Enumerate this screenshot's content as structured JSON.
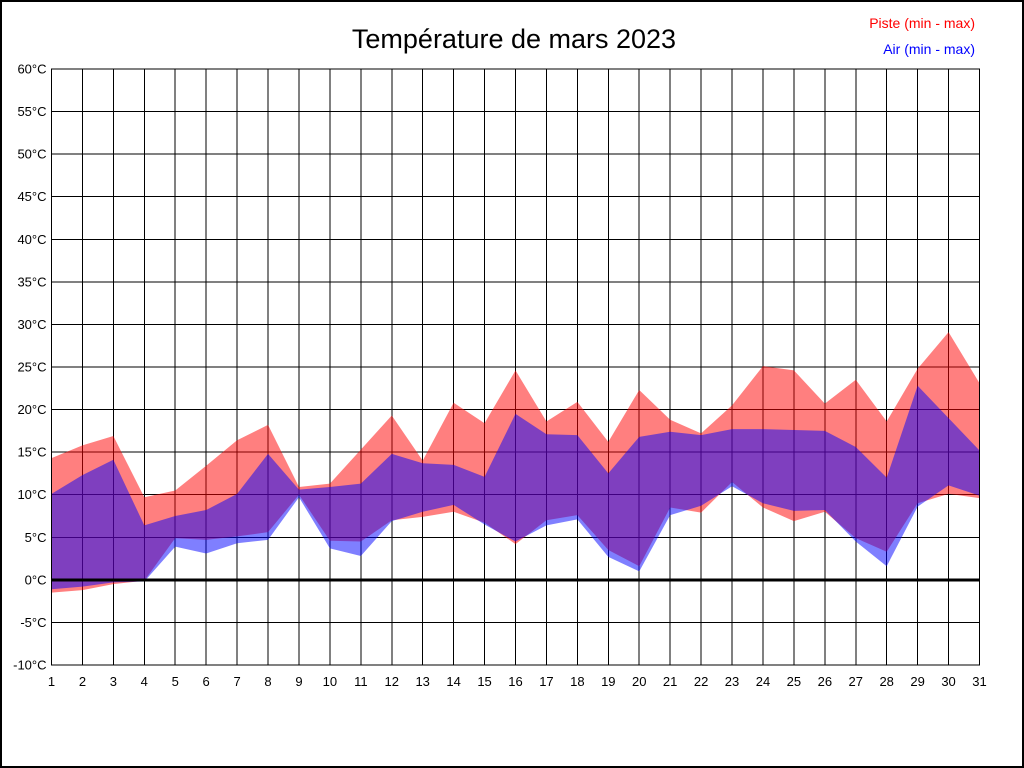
{
  "chart_data": {
    "type": "area",
    "title": "Température de mars 2023",
    "legend": {
      "piste_label": "Piste (min - max)",
      "air_label": "Air (min - max)",
      "position": "top-right"
    },
    "x": [
      1,
      2,
      3,
      4,
      5,
      6,
      7,
      8,
      9,
      10,
      11,
      12,
      13,
      14,
      15,
      16,
      17,
      18,
      19,
      20,
      21,
      22,
      23,
      24,
      25,
      26,
      27,
      28,
      29,
      30,
      31
    ],
    "xlabel": "",
    "ylabel": "",
    "yunit": "°C",
    "ylim": [
      -10,
      60
    ],
    "y_step": 5,
    "y_tick_labels": [
      "-10°C",
      "-5°C",
      "0°C",
      "5°C",
      "10°C",
      "15°C",
      "20°C",
      "25°C",
      "30°C",
      "35°C",
      "40°C",
      "45°C",
      "50°C",
      "55°C",
      "60°C"
    ],
    "grid": true,
    "zero_line": true,
    "series": [
      {
        "name": "Piste (min - max)",
        "color": "#ff0000",
        "fill": "rgba(255,0,0,0.5)",
        "min": [
          -1.5,
          -1.2,
          -0.5,
          -0.1,
          4.9,
          4.7,
          5.1,
          5.6,
          10.0,
          4.6,
          4.5,
          7.0,
          7.4,
          8.0,
          6.7,
          4.2,
          7.0,
          7.6,
          3.5,
          1.6,
          8.5,
          7.9,
          11.5,
          8.5,
          6.9,
          8.0,
          4.9,
          3.3,
          9.0,
          10.1,
          9.6
        ],
        "max": [
          14.3,
          15.8,
          16.9,
          9.7,
          10.5,
          13.4,
          16.4,
          18.2,
          10.9,
          11.3,
          15.3,
          19.3,
          14.0,
          20.8,
          18.4,
          24.6,
          18.6,
          20.9,
          16.2,
          22.3,
          18.8,
          17.2,
          20.5,
          25.1,
          24.6,
          20.7,
          23.5,
          18.6,
          24.8,
          29.1,
          23.1
        ]
      },
      {
        "name": "Air (min - max)",
        "color": "#0000ff",
        "fill": "rgba(0,0,255,0.5)",
        "min": [
          -1.1,
          -0.8,
          -0.3,
          -0.2,
          3.9,
          3.1,
          4.3,
          4.7,
          9.7,
          3.7,
          2.8,
          6.9,
          8.0,
          8.8,
          6.5,
          4.5,
          6.4,
          7.1,
          2.7,
          1.0,
          7.6,
          8.7,
          11.0,
          9.0,
          8.1,
          8.2,
          4.5,
          1.6,
          8.6,
          11.1,
          9.9
        ],
        "max": [
          10.1,
          12.3,
          14.1,
          6.4,
          7.5,
          8.2,
          10.1,
          14.8,
          10.6,
          10.9,
          11.3,
          14.8,
          13.7,
          13.5,
          12.1,
          19.5,
          17.1,
          17.0,
          12.5,
          16.8,
          17.4,
          17.0,
          17.7,
          17.7,
          17.6,
          17.5,
          15.6,
          12.0,
          22.8,
          19.0,
          15.2
        ]
      }
    ]
  }
}
